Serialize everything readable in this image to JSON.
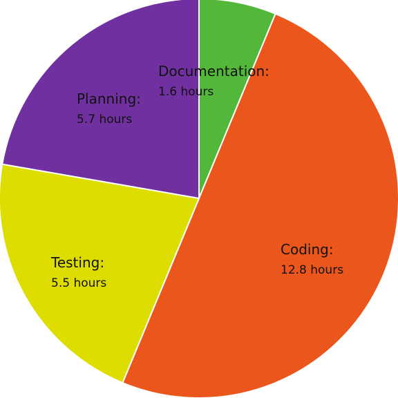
{
  "chart_data": {
    "type": "pie",
    "start_angle": "12 o'clock",
    "direction": "clockwise",
    "legend": "none",
    "slices": [
      {
        "label": "Documentation:",
        "value": 1.6,
        "value_text": "1.6 hours",
        "color": "#52b73a"
      },
      {
        "label": "Coding:",
        "value": 12.8,
        "value_text": "12.8 hours",
        "color": "#eb561c"
      },
      {
        "label": "Testing:",
        "value": 5.5,
        "value_text": "5.5 hours",
        "color": "#dddd00"
      },
      {
        "label": "Planning:",
        "value": 5.7,
        "value_text": "5.7 hours",
        "color": "#7030a0"
      }
    ]
  }
}
